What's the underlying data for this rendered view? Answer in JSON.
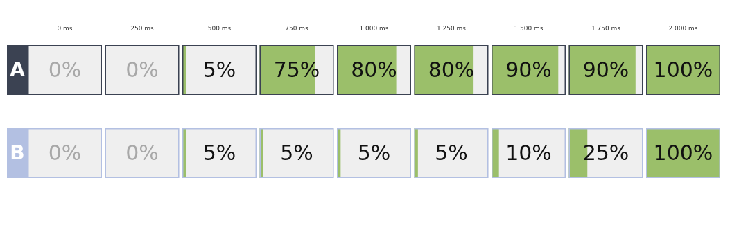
{
  "chart_data": {
    "type": "heatmap",
    "categories": [
      "0 ms",
      "250 ms",
      "500 ms",
      "750 ms",
      "1 000 ms",
      "1 250 ms",
      "1 500 ms",
      "1 750 ms",
      "2 000 ms"
    ],
    "y_categories": [
      "A",
      "B"
    ],
    "cells": [
      [
        0,
        0,
        5,
        75,
        80,
        80,
        90,
        90,
        100
      ],
      [
        0,
        0,
        5,
        5,
        5,
        5,
        10,
        25,
        100
      ]
    ],
    "cell_labels": [
      [
        "0%",
        "0%",
        "5%",
        "75%",
        "80%",
        "80%",
        "90%",
        "90%",
        "100%"
      ],
      [
        "0%",
        "0%",
        "5%",
        "5%",
        "5%",
        "5%",
        "10%",
        "25%",
        "100%"
      ]
    ],
    "colors": [
      "#3b4252",
      "#b3c0e2"
    ],
    "color": "#9bbf6a"
  }
}
